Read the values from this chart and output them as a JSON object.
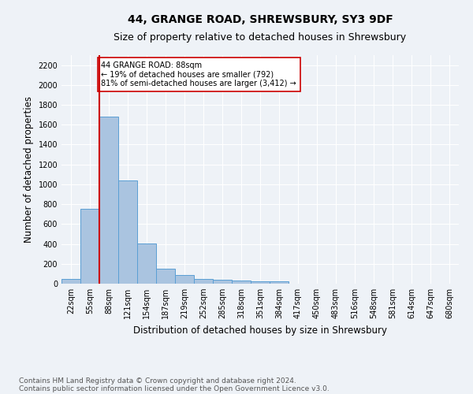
{
  "title": "44, GRANGE ROAD, SHREWSBURY, SY3 9DF",
  "subtitle": "Size of property relative to detached houses in Shrewsbury",
  "xlabel": "Distribution of detached houses by size in Shrewsbury",
  "ylabel": "Number of detached properties",
  "categories": [
    "22sqm",
    "55sqm",
    "88sqm",
    "121sqm",
    "154sqm",
    "187sqm",
    "219sqm",
    "252sqm",
    "285sqm",
    "318sqm",
    "351sqm",
    "384sqm",
    "417sqm",
    "450sqm",
    "483sqm",
    "516sqm",
    "548sqm",
    "581sqm",
    "614sqm",
    "647sqm",
    "680sqm"
  ],
  "values": [
    50,
    750,
    1680,
    1040,
    405,
    150,
    85,
    47,
    38,
    30,
    20,
    20,
    0,
    0,
    0,
    0,
    0,
    0,
    0,
    0,
    0
  ],
  "bar_color": "#aac4e0",
  "bar_edge_color": "#5a9fd4",
  "highlight_index": 2,
  "highlight_color": "#cc0000",
  "annotation_line1": "44 GRANGE ROAD: 88sqm",
  "annotation_line2": "← 19% of detached houses are smaller (792)",
  "annotation_line3": "81% of semi-detached houses are larger (3,412) →",
  "annotation_box_color": "#ffffff",
  "annotation_box_edge": "#cc0000",
  "ylim": [
    0,
    2300
  ],
  "yticks": [
    0,
    200,
    400,
    600,
    800,
    1000,
    1200,
    1400,
    1600,
    1800,
    2000,
    2200
  ],
  "footer_line1": "Contains HM Land Registry data © Crown copyright and database right 2024.",
  "footer_line2": "Contains public sector information licensed under the Open Government Licence v3.0.",
  "bg_color": "#eef2f7",
  "grid_color": "#ffffff",
  "title_fontsize": 10,
  "subtitle_fontsize": 9,
  "axis_label_fontsize": 8.5,
  "tick_fontsize": 7,
  "footer_fontsize": 6.5
}
